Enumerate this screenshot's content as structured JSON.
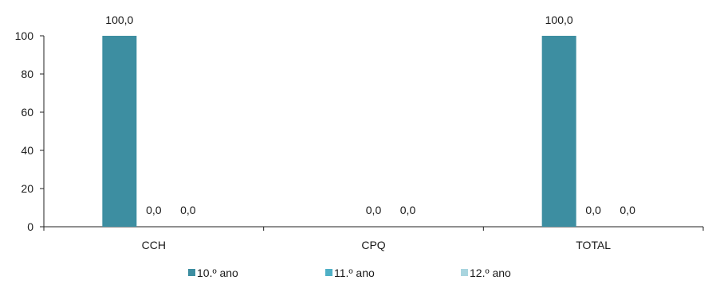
{
  "chart_data": {
    "type": "bar",
    "categories": [
      "CCH",
      "CPQ",
      "TOTAL"
    ],
    "series": [
      {
        "name": "10.º ano",
        "values": [
          100.0,
          null,
          100.0
        ],
        "labels": [
          "100,0",
          "",
          "100,0"
        ],
        "color": "#3d8ea1"
      },
      {
        "name": "11.º ano",
        "values": [
          0.0,
          0.0,
          0.0
        ],
        "labels": [
          "0,0",
          "0,0",
          "0,0"
        ],
        "color": "#4fb0c6"
      },
      {
        "name": "12.º ano",
        "values": [
          0.0,
          0.0,
          0.0
        ],
        "labels": [
          "0,0",
          "0,0",
          "0,0"
        ],
        "color": "#a9d5df"
      }
    ],
    "yticks": [
      "0",
      "20",
      "40",
      "60",
      "80",
      "100"
    ],
    "ylim": [
      0,
      100
    ],
    "grid": false,
    "legend_position": "bottom"
  }
}
